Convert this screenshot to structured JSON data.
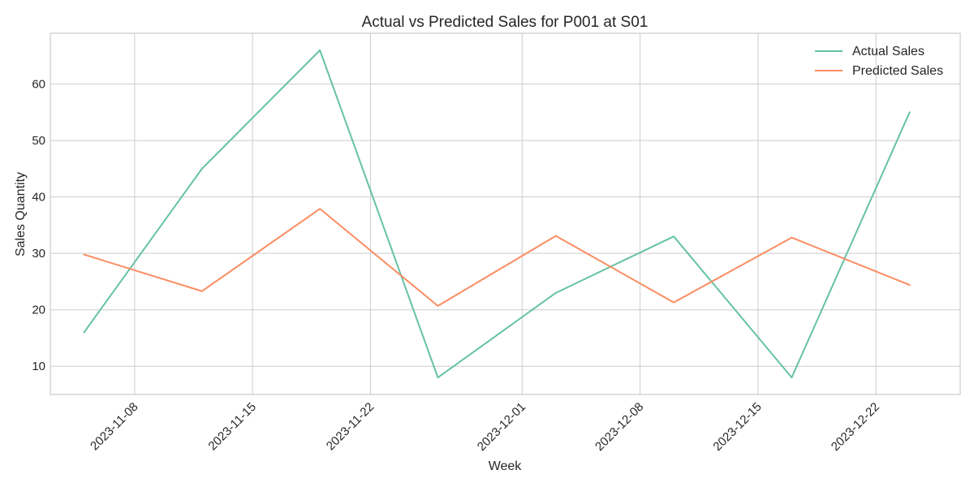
{
  "chart_data": {
    "type": "line",
    "title": "Actual vs Predicted Sales for P001 at S01",
    "xlabel": "Week",
    "ylabel": "Sales Quantity",
    "x": [
      "2023-11-05",
      "2023-11-12",
      "2023-11-19",
      "2023-11-26",
      "2023-12-03",
      "2023-12-10",
      "2023-12-17",
      "2023-12-24"
    ],
    "series": [
      {
        "name": "Actual Sales",
        "color": "#66c2a5",
        "values": [
          16,
          45,
          66,
          8,
          23,
          33,
          8,
          55
        ]
      },
      {
        "name": "Predicted Sales",
        "color": "#fc8d62",
        "values": [
          29.8,
          23.3,
          37.9,
          20.7,
          33.1,
          21.3,
          32.8,
          24.4
        ]
      }
    ],
    "x_ticks": [
      "2023-11-08",
      "2023-11-15",
      "2023-11-22",
      "2023-12-01",
      "2023-12-08",
      "2023-12-15",
      "2023-12-22"
    ],
    "y_ticks": [
      10,
      20,
      30,
      40,
      50,
      60
    ],
    "xlim": [
      "2023-11-03",
      "2023-12-27"
    ],
    "ylim": [
      5,
      69
    ],
    "grid": true,
    "legend": "top-right"
  }
}
